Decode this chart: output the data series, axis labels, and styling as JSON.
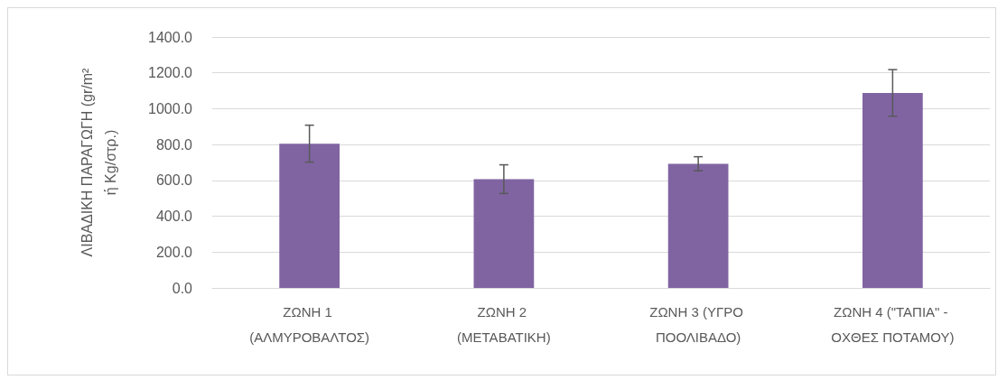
{
  "chart_data": {
    "type": "bar",
    "ylabel": "ΛΙΒΑΔΙΚΗ ΠΑΡΑΓΩΓΗ (gr/m²\nή Kg/στρ.)",
    "categories": [
      "ΖΩΝΗ 1 (ΑΛΜΥΡΟΒΑΛΤΟΣ)",
      "ΖΩΝΗ 2 (ΜΕΤΑΒΑΤΙΚΗ)",
      "ΖΩΝΗ 3 (ΥΓΡΟ ΠΟΟΛΙΒΑΔΟ)",
      "ΖΩΝΗ 4 (\"ΤΑΠΙΑ\" - ΟΧΘΕΣ ΠΟΤΑΜΟΥ)"
    ],
    "values": [
      805,
      607,
      693,
      1088
    ],
    "errors": [
      103,
      80,
      39,
      130
    ],
    "color": "#8064a2",
    "ylim": [
      0,
      1400
    ],
    "yticks": [
      {
        "value": 0,
        "label": "0.0"
      },
      {
        "value": 200,
        "label": "200.0"
      },
      {
        "value": 400,
        "label": "400.0"
      },
      {
        "value": 600,
        "label": "600.0"
      },
      {
        "value": 800,
        "label": "800.0"
      },
      {
        "value": 1000,
        "label": "1000.0"
      },
      {
        "value": 1200,
        "label": "1200.0"
      },
      {
        "value": 1400,
        "label": "1400.0"
      }
    ],
    "grid": "y"
  }
}
